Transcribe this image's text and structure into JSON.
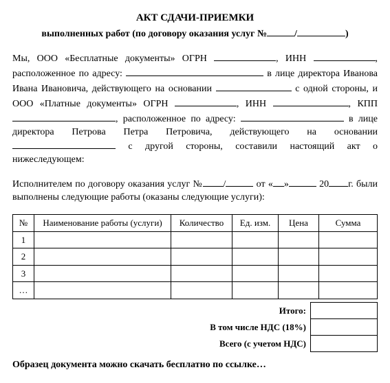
{
  "title": "АКТ СДАЧИ-ПРИЕМКИ",
  "subtitle_pre": "выполненных работ (по договору оказания услуг №",
  "subtitle_slash": "/",
  "subtitle_post": ")",
  "para1_a": "Мы, ООО «Бесплатные документы» ОГРН ",
  "para1_b": ", ИНН ",
  "para1_c": ", расположенное по адресу: ",
  "para1_d": " в лице директора Иванова Ивана Ивановича, действующего на основании ",
  "para1_e": " с одной стороны, и ООО «Платные документы» ОГРН ",
  "para1_f": ", ИНН ",
  "para1_g": ", КПП ",
  "para1_h": ", расположенное по адресу: ",
  "para1_i": " в лице директора Петрова Петра Петровича, действующего на основании ",
  "para1_j": " с другой стороны, составили  настоящий  акт о нижеследующем:",
  "para2_a": "Исполнителем по договору оказания услуг №",
  "para2_slash": "/",
  "para2_b": " от «",
  "para2_c": "»",
  "para2_d": " 20",
  "para2_e": "г. были выполнены следующие работы (оказаны следующие услуги):",
  "table": {
    "headers": {
      "num": "№",
      "name": "Наименование работы (услуги)",
      "qty": "Количество",
      "unit": "Ед. изм.",
      "price": "Цена",
      "sum": "Сумма"
    },
    "rows": [
      "1",
      "2",
      "3",
      "…"
    ]
  },
  "totals": {
    "itogo": "Итого:",
    "nds": "В том числе НДС (18%)",
    "total": "Всего (с учетом НДС)"
  },
  "footer": "Образец документа можно скачать бесплатно по ссылке…"
}
